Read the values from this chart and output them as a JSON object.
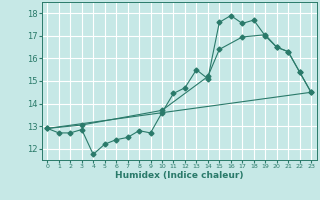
{
  "xlabel": "Humidex (Indice chaleur)",
  "xlim": [
    -0.5,
    23.5
  ],
  "ylim": [
    11.5,
    18.5
  ],
  "yticks": [
    12,
    13,
    14,
    15,
    16,
    17,
    18
  ],
  "xticks": [
    0,
    1,
    2,
    3,
    4,
    5,
    6,
    7,
    8,
    9,
    10,
    11,
    12,
    13,
    14,
    15,
    16,
    17,
    18,
    19,
    20,
    21,
    22,
    23
  ],
  "bg_color": "#c6e8e6",
  "grid_color": "#ffffff",
  "line_color": "#2a7a6a",
  "line1_x": [
    0,
    1,
    2,
    3,
    4,
    5,
    6,
    7,
    8,
    9,
    10,
    11,
    12,
    13,
    14,
    15,
    16,
    17,
    18,
    19,
    20,
    21,
    22,
    23
  ],
  "line1_y": [
    12.9,
    12.7,
    12.7,
    12.85,
    11.75,
    12.2,
    12.4,
    12.5,
    12.8,
    12.7,
    13.6,
    14.45,
    14.7,
    15.5,
    15.1,
    17.6,
    17.9,
    17.55,
    17.7,
    17.0,
    16.5,
    16.3,
    15.4,
    14.5
  ],
  "line2_x": [
    0,
    3,
    10,
    14,
    15,
    17,
    19,
    20,
    21,
    22,
    23
  ],
  "line2_y": [
    12.9,
    13.05,
    13.7,
    15.2,
    16.4,
    16.95,
    17.05,
    16.5,
    16.3,
    15.4,
    14.5
  ],
  "line3_x": [
    0,
    23
  ],
  "line3_y": [
    12.9,
    14.5
  ]
}
